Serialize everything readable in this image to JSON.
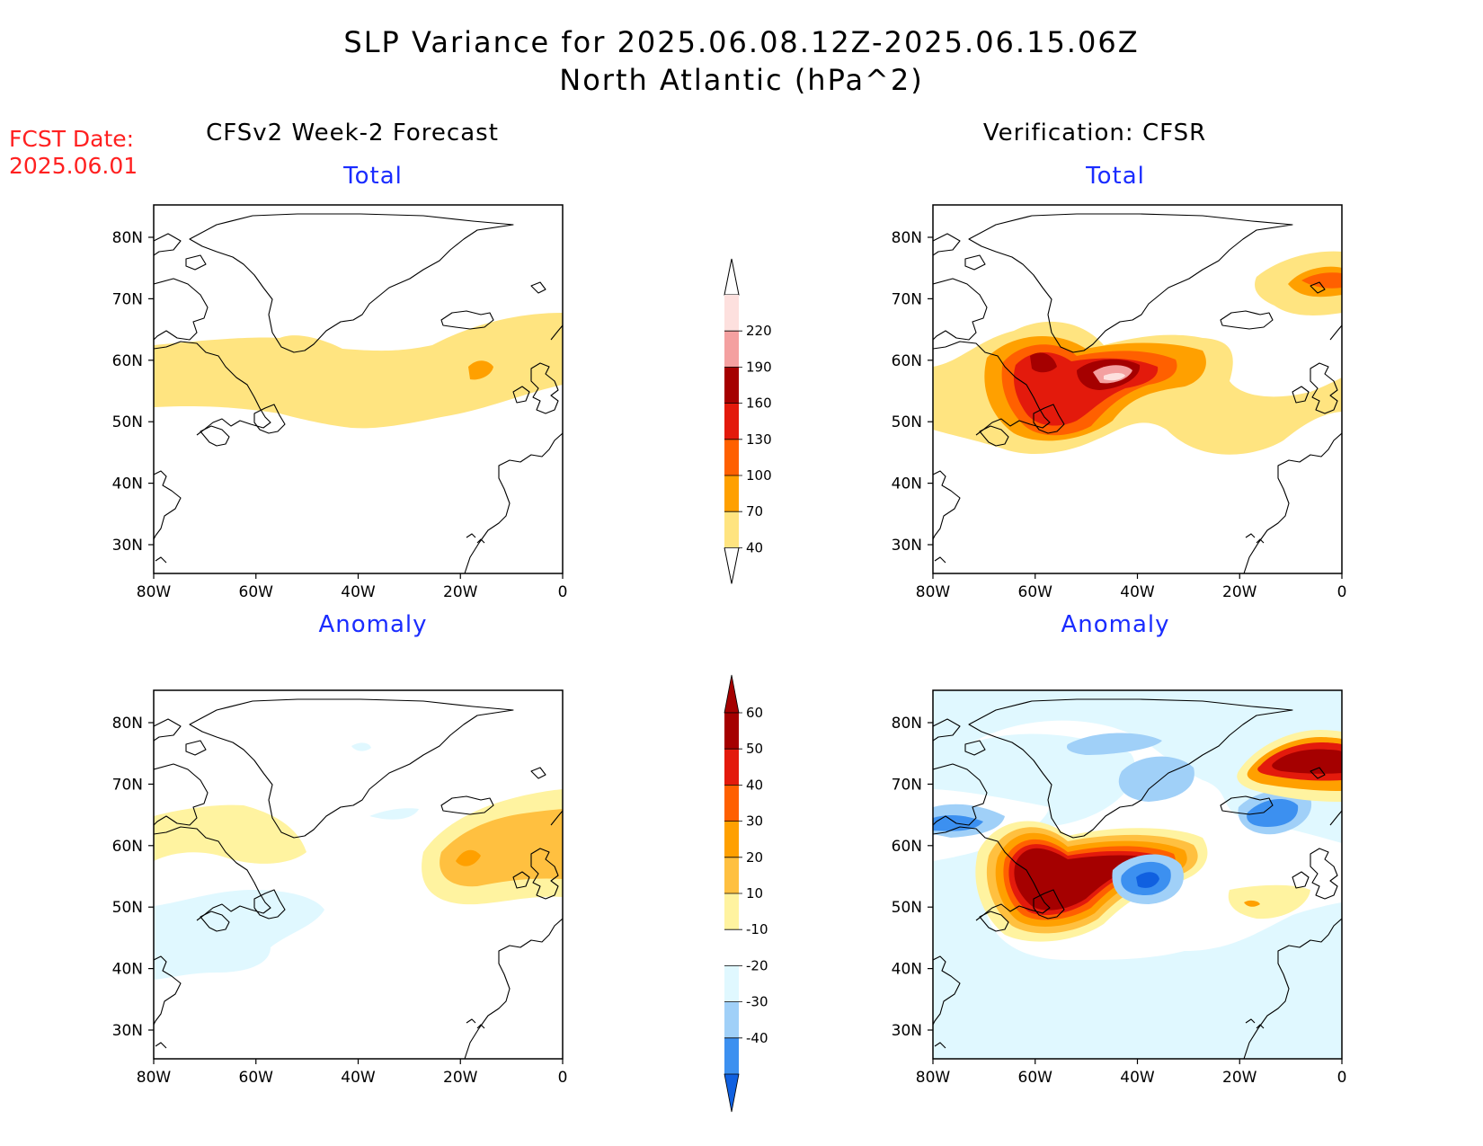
{
  "header": {
    "title": "SLP Variance for 2025.06.08.12Z-2025.06.15.06Z",
    "subtitle": "North Atlantic (hPa^2)"
  },
  "fcst": {
    "label": "FCST Date:",
    "date": "2025.06.01"
  },
  "columns": {
    "left": "CFSv2 Week-2 Forecast",
    "right": "Verification: CFSR"
  },
  "panel_titles": {
    "top": "Total",
    "bottom": "Anomaly"
  },
  "axes": {
    "lon_ticks": [
      "80W",
      "60W",
      "40W",
      "20W",
      "0"
    ],
    "lat_ticks": [
      "80N",
      "70N",
      "60N",
      "50N",
      "40N",
      "30N"
    ]
  },
  "colorbars": {
    "total": {
      "labels": [
        "220",
        "190",
        "160",
        "130",
        "100",
        "70",
        "40"
      ],
      "colors": [
        "#fde0de",
        "#f4a0a0",
        "#a50000",
        "#e31a0c",
        "#ff6000",
        "#ffa000",
        "#ffe480"
      ]
    },
    "anomaly": {
      "labels": [
        "60",
        "50",
        "40",
        "30",
        "20",
        "10",
        "-10",
        "-20",
        "-30",
        "-40"
      ],
      "colors": [
        "#a50000",
        "#e31a0c",
        "#ff6000",
        "#ffa000",
        "#ffc040",
        "#fff3a0",
        "#ffffff",
        "#e0f8ff",
        "#a0d0f8",
        "#3c90f0",
        "#1060e0"
      ]
    }
  },
  "colors": {
    "title": "#000000",
    "fcst": "#ff2020",
    "panel_title": "#1a2cff"
  }
}
